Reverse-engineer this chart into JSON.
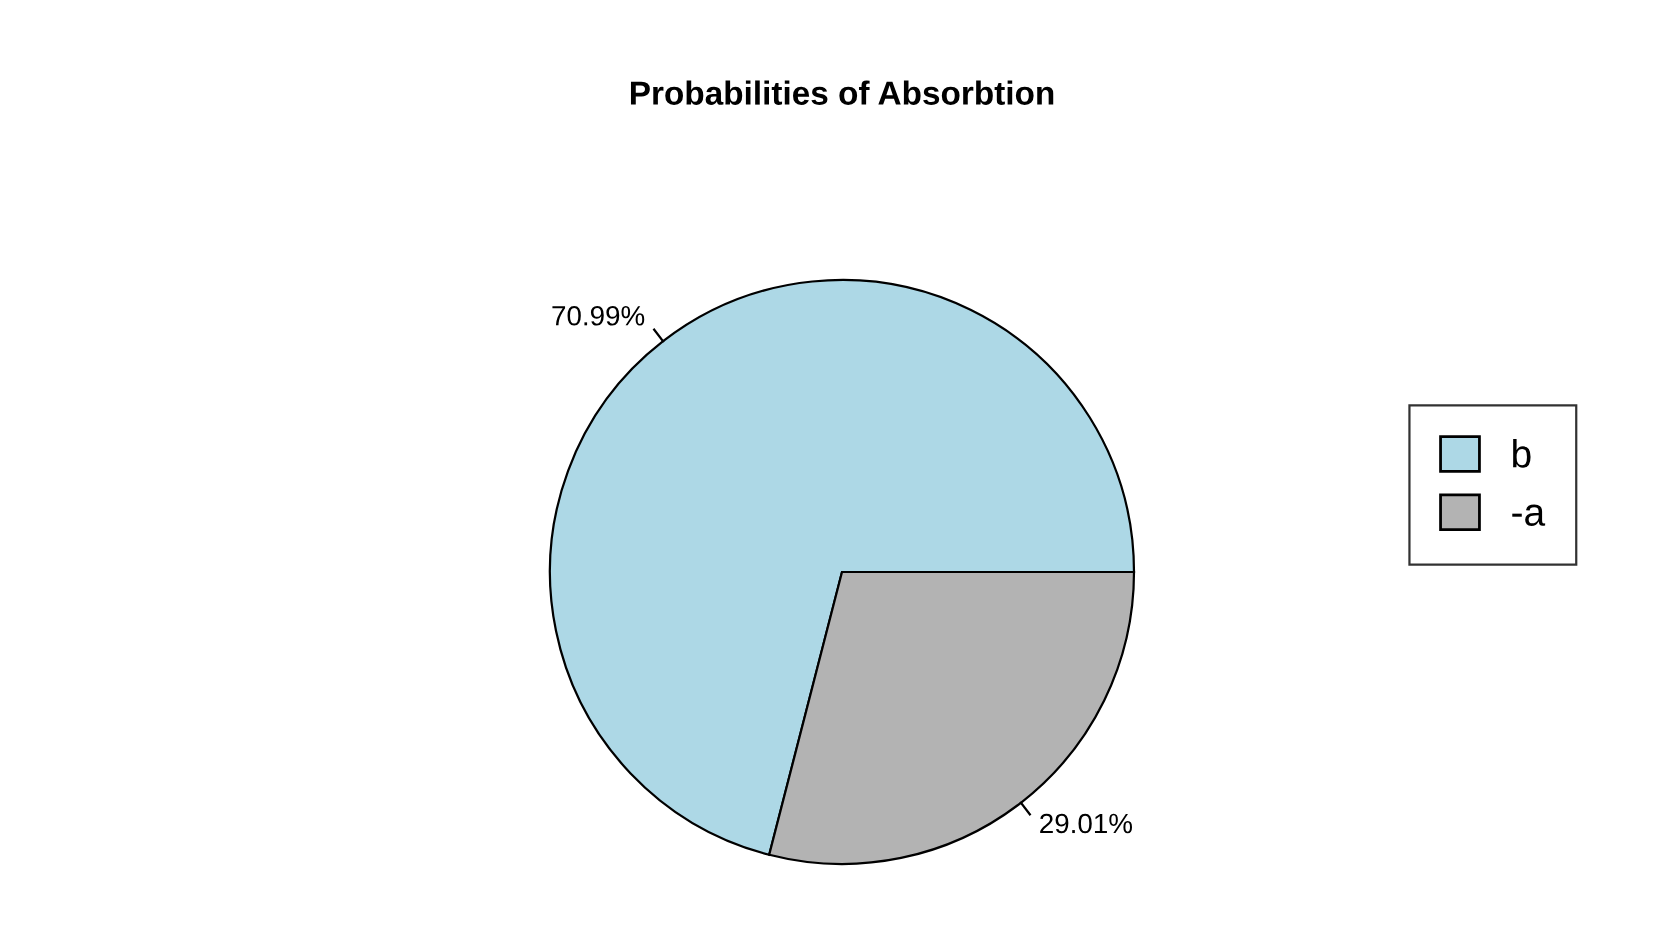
{
  "chart_data": {
    "type": "pie",
    "title": "Probabilities of Absorbtion",
    "categories": [
      "b",
      "-a"
    ],
    "values": [
      70.99,
      29.01
    ],
    "colors": [
      "#add8e6",
      "#b3b3b3"
    ],
    "value_labels": [
      "70.99%",
      "29.01%"
    ],
    "legend": "right"
  }
}
